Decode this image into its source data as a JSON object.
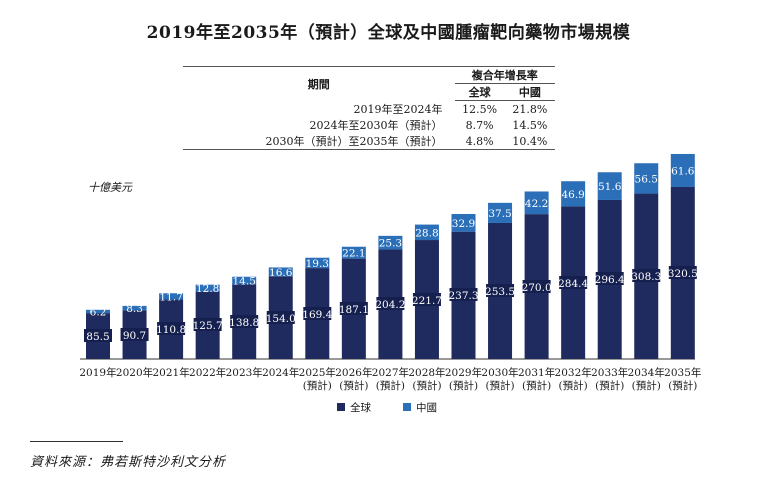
{
  "title": "2019年至2035年（預計）全球及中國腫瘤靶向藥物市場規模",
  "cagr_table": {
    "col_period": "期間",
    "col_group": "複合年增長率",
    "col_global": "全球",
    "col_china": "中國",
    "rows": [
      {
        "period": "2019年至2024年",
        "global": "12.5%",
        "china": "21.8%"
      },
      {
        "period": "2024年至2030年（預計）",
        "global": "8.7%",
        "china": "14.5%"
      },
      {
        "period": "2030年（預計）至2035年（預計）",
        "global": "4.8%",
        "china": "10.4%"
      }
    ]
  },
  "source": "資料來源：弗若斯特沙利文分析",
  "chart_data": {
    "type": "bar",
    "stacked": true,
    "unit_label": "十億美元",
    "categories": [
      "2019年",
      "2020年",
      "2021年",
      "2022年",
      "2023年",
      "2024年",
      "2025年",
      "2026年",
      "2027年",
      "2028年",
      "2029年",
      "2030年",
      "2031年",
      "2032年",
      "2033年",
      "2034年",
      "2035年"
    ],
    "category_sub": [
      "",
      "",
      "",
      "",
      "",
      "",
      "(預計)",
      "(預計)",
      "(預計)",
      "(預計)",
      "(預計)",
      "(預計)",
      "(預計)",
      "(預計)",
      "(預計)",
      "(預計)",
      "(預計)"
    ],
    "series": [
      {
        "name": "全球",
        "color": "#1f2a5e",
        "values": [
          85.5,
          90.7,
          110.8,
          125.7,
          138.8,
          154.0,
          169.4,
          187.1,
          204.2,
          221.7,
          237.3,
          253.5,
          270.0,
          284.4,
          296.4,
          308.3,
          320.5
        ]
      },
      {
        "name": "中國",
        "color": "#2a6fb8",
        "values": [
          6.2,
          8.3,
          11.7,
          12.8,
          14.5,
          16.6,
          19.3,
          22.1,
          25.3,
          28.8,
          32.9,
          37.5,
          42.2,
          46.9,
          51.6,
          56.5,
          61.6
        ]
      }
    ],
    "legend_position": "bottom",
    "grid": false
  }
}
